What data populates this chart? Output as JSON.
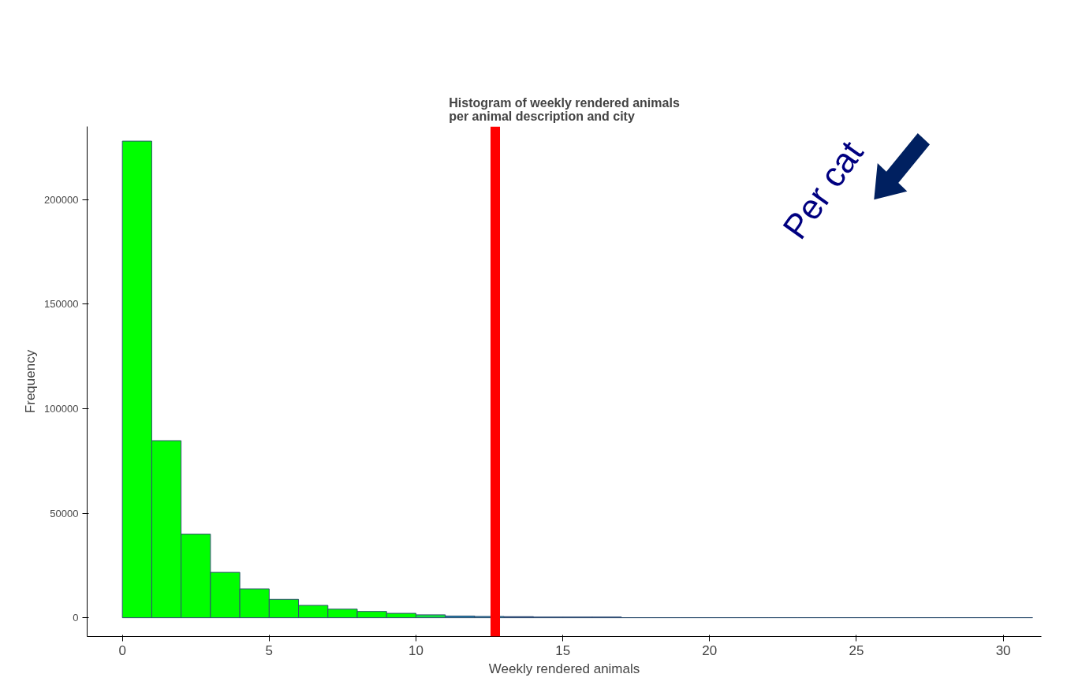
{
  "chart_data": {
    "type": "histogram",
    "title": "Histogram of weekly rendered animals\nper animal description and city",
    "xlabel": "Weekly rendered animals",
    "ylabel": "Frequency",
    "bins": [
      0,
      1,
      2,
      3,
      4,
      5,
      6,
      7,
      8,
      9,
      10,
      11,
      12,
      13,
      14,
      15,
      16,
      17,
      18,
      19,
      20,
      21,
      22,
      23,
      24,
      25,
      26,
      27,
      28,
      29,
      30,
      31
    ],
    "values": [
      228000,
      84700,
      40000,
      21700,
      13800,
      8800,
      5900,
      4100,
      3000,
      2100,
      1400,
      800,
      600,
      500,
      300,
      300,
      300,
      50,
      50,
      50,
      50,
      50,
      50,
      50,
      50,
      50,
      50,
      50,
      50,
      50,
      50
    ],
    "colors": [
      "#00ff00",
      "#00ff00",
      "#00ff00",
      "#00ff00",
      "#00ff00",
      "#00ff00",
      "#00ff00",
      "#00ff00",
      "#00ff00",
      "#00ff00",
      "#10e040",
      "#2080b0",
      "#2080b0",
      "#000080",
      "#000080",
      "#000080",
      "#000080",
      "#000080",
      "#000080",
      "#000080",
      "#000080",
      "#000080",
      "#000080",
      "#000080",
      "#000080",
      "#000080",
      "#000080",
      "#000080",
      "#000080",
      "#000080",
      "#000080"
    ],
    "xlim": [
      -1.2,
      31.3
    ],
    "ylim": [
      -9000,
      235000
    ],
    "xticks": [
      0,
      5,
      10,
      15,
      20,
      25,
      30
    ],
    "yticks": [
      0,
      50000,
      100000,
      150000,
      200000
    ],
    "grid": false,
    "ref_lines": [
      {
        "axis": "x",
        "value": 12.7,
        "color": "#ff0000"
      }
    ],
    "annotations": [
      "Per cat"
    ]
  }
}
